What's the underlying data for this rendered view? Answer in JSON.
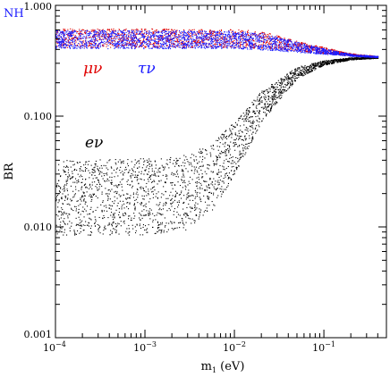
{
  "chart_data": {
    "type": "scatter",
    "title": "",
    "corner_label": "NH",
    "xlabel": "m",
    "xlabel_sub": "1",
    "xlabel_unit": " (eV)",
    "ylabel": "BR",
    "xscale": "log",
    "yscale": "log",
    "xlim": [
      0.0001,
      0.5
    ],
    "ylim": [
      0.001,
      1.0
    ],
    "x_ticks": [
      {
        "value": 0.0001,
        "base": "10",
        "exp": "−4"
      },
      {
        "value": 0.001,
        "base": "10",
        "exp": "−3"
      },
      {
        "value": 0.01,
        "base": "10",
        "exp": "−2"
      },
      {
        "value": 0.1,
        "base": "10",
        "exp": "−1"
      }
    ],
    "y_ticks": [
      {
        "value": 0.001,
        "label": "0.001"
      },
      {
        "value": 0.01,
        "label": "0.010"
      },
      {
        "value": 0.1,
        "label": "0.100"
      },
      {
        "value": 1.0,
        "label": "1.000"
      }
    ],
    "series": [
      {
        "name": "μν",
        "color": "#e00000",
        "band": [
          {
            "x": 0.0001,
            "low": 0.42,
            "high": 0.62
          },
          {
            "x": 0.001,
            "low": 0.42,
            "high": 0.62
          },
          {
            "x": 0.01,
            "low": 0.42,
            "high": 0.61
          },
          {
            "x": 0.02,
            "low": 0.41,
            "high": 0.59
          },
          {
            "x": 0.05,
            "low": 0.39,
            "high": 0.48
          },
          {
            "x": 0.1,
            "low": 0.37,
            "high": 0.42
          },
          {
            "x": 0.2,
            "low": 0.355,
            "high": 0.37
          },
          {
            "x": 0.4,
            "low": 0.34,
            "high": 0.35
          }
        ]
      },
      {
        "name": "τν",
        "color": "#1a1aff",
        "band": [
          {
            "x": 0.0001,
            "low": 0.41,
            "high": 0.6
          },
          {
            "x": 0.001,
            "low": 0.41,
            "high": 0.6
          },
          {
            "x": 0.01,
            "low": 0.41,
            "high": 0.59
          },
          {
            "x": 0.02,
            "low": 0.4,
            "high": 0.57
          },
          {
            "x": 0.05,
            "low": 0.38,
            "high": 0.47
          },
          {
            "x": 0.1,
            "low": 0.365,
            "high": 0.41
          },
          {
            "x": 0.2,
            "low": 0.35,
            "high": 0.365
          },
          {
            "x": 0.4,
            "low": 0.34,
            "high": 0.35
          }
        ]
      },
      {
        "name": "eν",
        "color": "#000000",
        "band": [
          {
            "x": 0.0001,
            "low": 0.0085,
            "high": 0.04
          },
          {
            "x": 0.001,
            "low": 0.0085,
            "high": 0.042
          },
          {
            "x": 0.003,
            "low": 0.0095,
            "high": 0.045
          },
          {
            "x": 0.006,
            "low": 0.015,
            "high": 0.06
          },
          {
            "x": 0.01,
            "low": 0.03,
            "high": 0.09
          },
          {
            "x": 0.02,
            "low": 0.09,
            "high": 0.17
          },
          {
            "x": 0.05,
            "low": 0.22,
            "high": 0.28
          },
          {
            "x": 0.1,
            "low": 0.29,
            "high": 0.32
          },
          {
            "x": 0.2,
            "low": 0.325,
            "high": 0.34
          },
          {
            "x": 0.4,
            "low": 0.335,
            "high": 0.345
          }
        ]
      }
    ]
  }
}
